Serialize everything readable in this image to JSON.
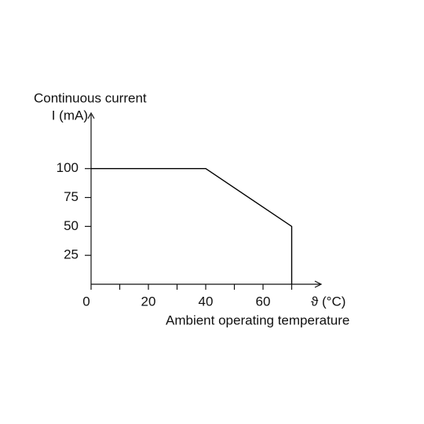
{
  "chart_data": {
    "type": "line",
    "ylabel": "Continuous current",
    "yunit": "I (mA)",
    "xunit": "ϑ (°C)",
    "xlabel": "Ambient operating temperature",
    "x": [
      0,
      40,
      70,
      70
    ],
    "values": [
      100,
      100,
      50,
      0
    ],
    "color": "#000000",
    "xlim": [
      0,
      80
    ],
    "ylim": [
      0,
      148
    ],
    "xticks": [
      0,
      20,
      40,
      60
    ],
    "xminorticks": [
      10,
      30,
      50,
      70
    ],
    "yticks": [
      25,
      50,
      75,
      100
    ]
  }
}
